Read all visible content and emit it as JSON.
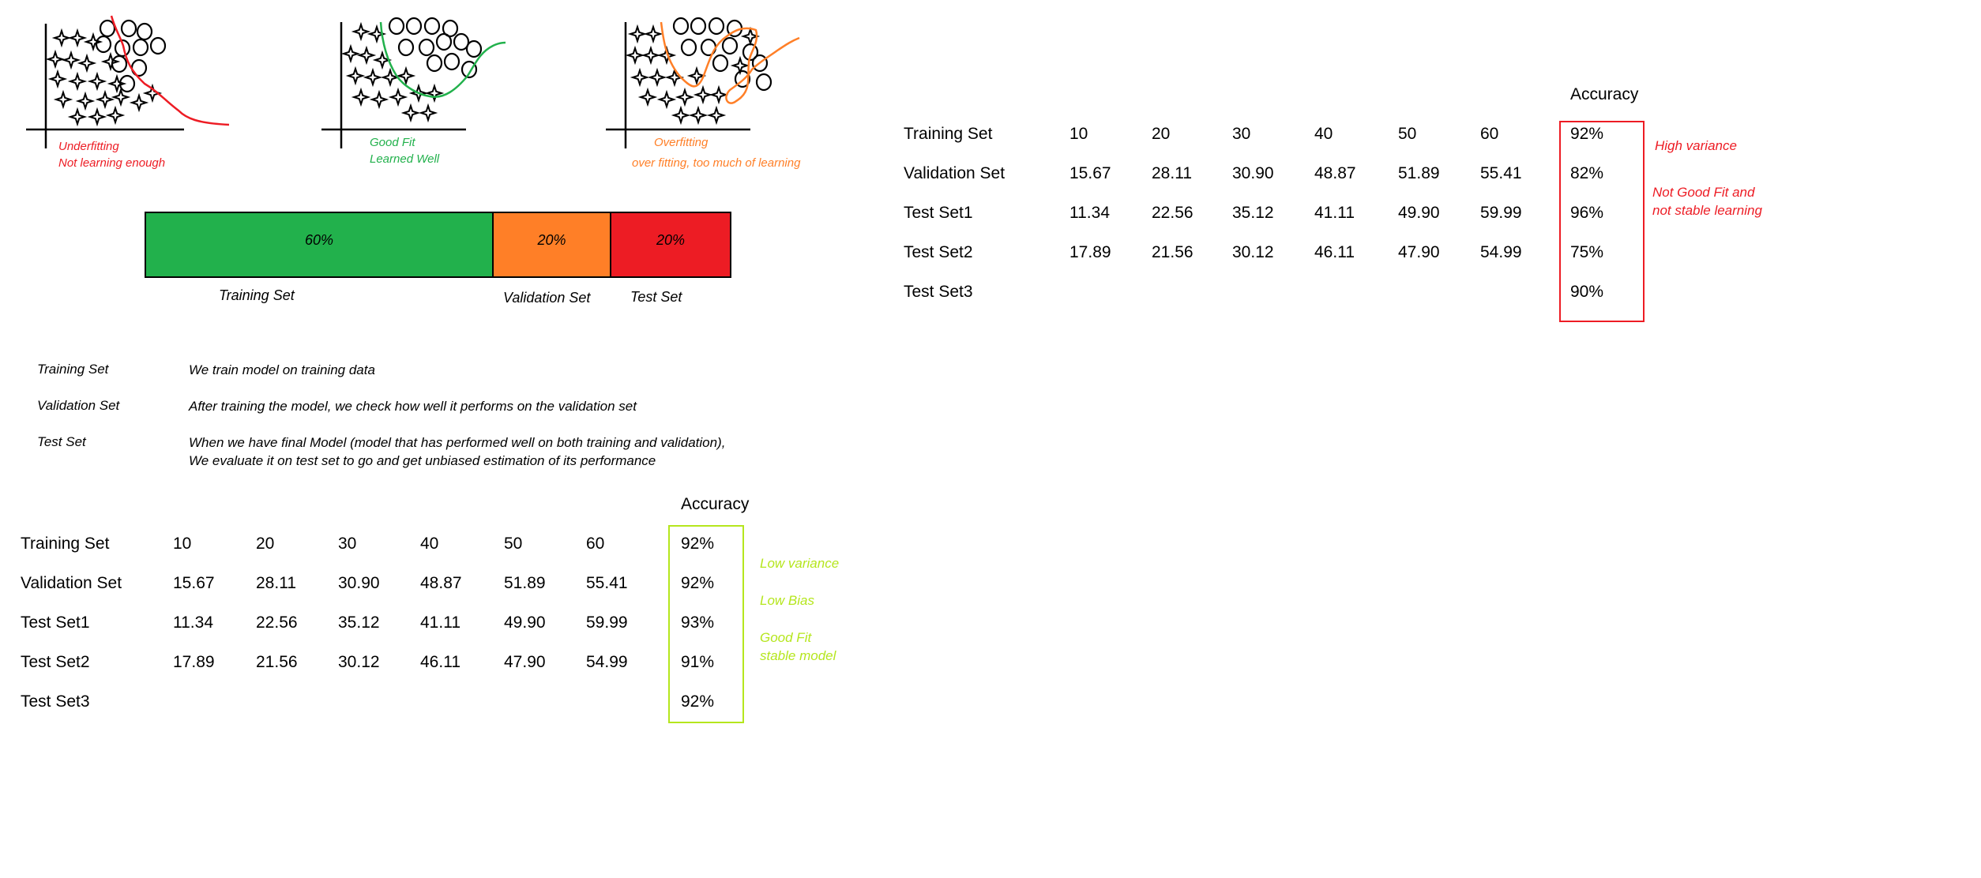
{
  "colors": {
    "underfit": "#ed1c24",
    "goodfit": "#22b14c",
    "overfit": "#ff7f27",
    "training_segment": "#22b14c",
    "validation_segment": "#ff7f27",
    "test_segment": "#ed1c24",
    "good_table_box": "#b5e61d",
    "bad_table_box": "#ed1c24"
  },
  "fit_panels": [
    {
      "line1": "Underfitting",
      "line2": "Not learning enough"
    },
    {
      "line1": "Good Fit",
      "line2": "Learned Well"
    },
    {
      "line1": "Overfitting",
      "line2": "over fitting, too much of learning"
    }
  ],
  "split": {
    "segments": [
      {
        "percent": "60%",
        "share": 0.6
      },
      {
        "percent": "20%",
        "share": 0.2
      },
      {
        "percent": "20%",
        "share": 0.2
      }
    ],
    "labels": [
      "Training Set",
      "Validation Set",
      "Test Set"
    ]
  },
  "definitions": [
    {
      "term": "Training Set",
      "line1": "We train model on training data",
      "line2": ""
    },
    {
      "term": "Validation Set",
      "line1": "After training the model, we check how well it performs on the validation set",
      "line2": ""
    },
    {
      "term": "Test Set",
      "line1": "When we have final Model (model that has performed well on both training and validation),",
      "line2": "We evaluate it on test set to go and get unbiased estimation of its performance"
    }
  ],
  "table_good": {
    "accuracy_header": "Accuracy",
    "rows": [
      {
        "name": "Training Set",
        "values": [
          "10",
          "20",
          "30",
          "40",
          "50",
          "60"
        ],
        "accuracy": "92%"
      },
      {
        "name": "Validation Set",
        "values": [
          "15.67",
          "28.11",
          "30.90",
          "48.87",
          "51.89",
          "55.41"
        ],
        "accuracy": "92%"
      },
      {
        "name": "Test Set1",
        "values": [
          "11.34",
          "22.56",
          "35.12",
          "41.11",
          "49.90",
          "59.99"
        ],
        "accuracy": "93%"
      },
      {
        "name": "Test Set2",
        "values": [
          "17.89",
          "21.56",
          "30.12",
          "46.11",
          "47.90",
          "54.99"
        ],
        "accuracy": "91%"
      },
      {
        "name": "Test Set3",
        "values": [
          "",
          "",
          "",
          "",
          "",
          ""
        ],
        "accuracy": "92%"
      }
    ],
    "notes": [
      "Low variance",
      "Low Bias",
      "Good Fit",
      "stable model"
    ]
  },
  "table_bad": {
    "accuracy_header": "Accuracy",
    "rows": [
      {
        "name": "Training Set",
        "values": [
          "10",
          "20",
          "30",
          "40",
          "50",
          "60"
        ],
        "accuracy": "92%"
      },
      {
        "name": "Validation Set",
        "values": [
          "15.67",
          "28.11",
          "30.90",
          "48.87",
          "51.89",
          "55.41"
        ],
        "accuracy": "82%"
      },
      {
        "name": "Test Set1",
        "values": [
          "11.34",
          "22.56",
          "35.12",
          "41.11",
          "49.90",
          "59.99"
        ],
        "accuracy": "96%"
      },
      {
        "name": "Test Set2",
        "values": [
          "17.89",
          "21.56",
          "30.12",
          "46.11",
          "47.90",
          "54.99"
        ],
        "accuracy": "75%"
      },
      {
        "name": "Test Set3",
        "values": [
          "",
          "",
          "",
          "",
          "",
          ""
        ],
        "accuracy": "90%"
      }
    ],
    "notes": [
      "High variance",
      "Not Good Fit and",
      "not stable learning"
    ]
  }
}
